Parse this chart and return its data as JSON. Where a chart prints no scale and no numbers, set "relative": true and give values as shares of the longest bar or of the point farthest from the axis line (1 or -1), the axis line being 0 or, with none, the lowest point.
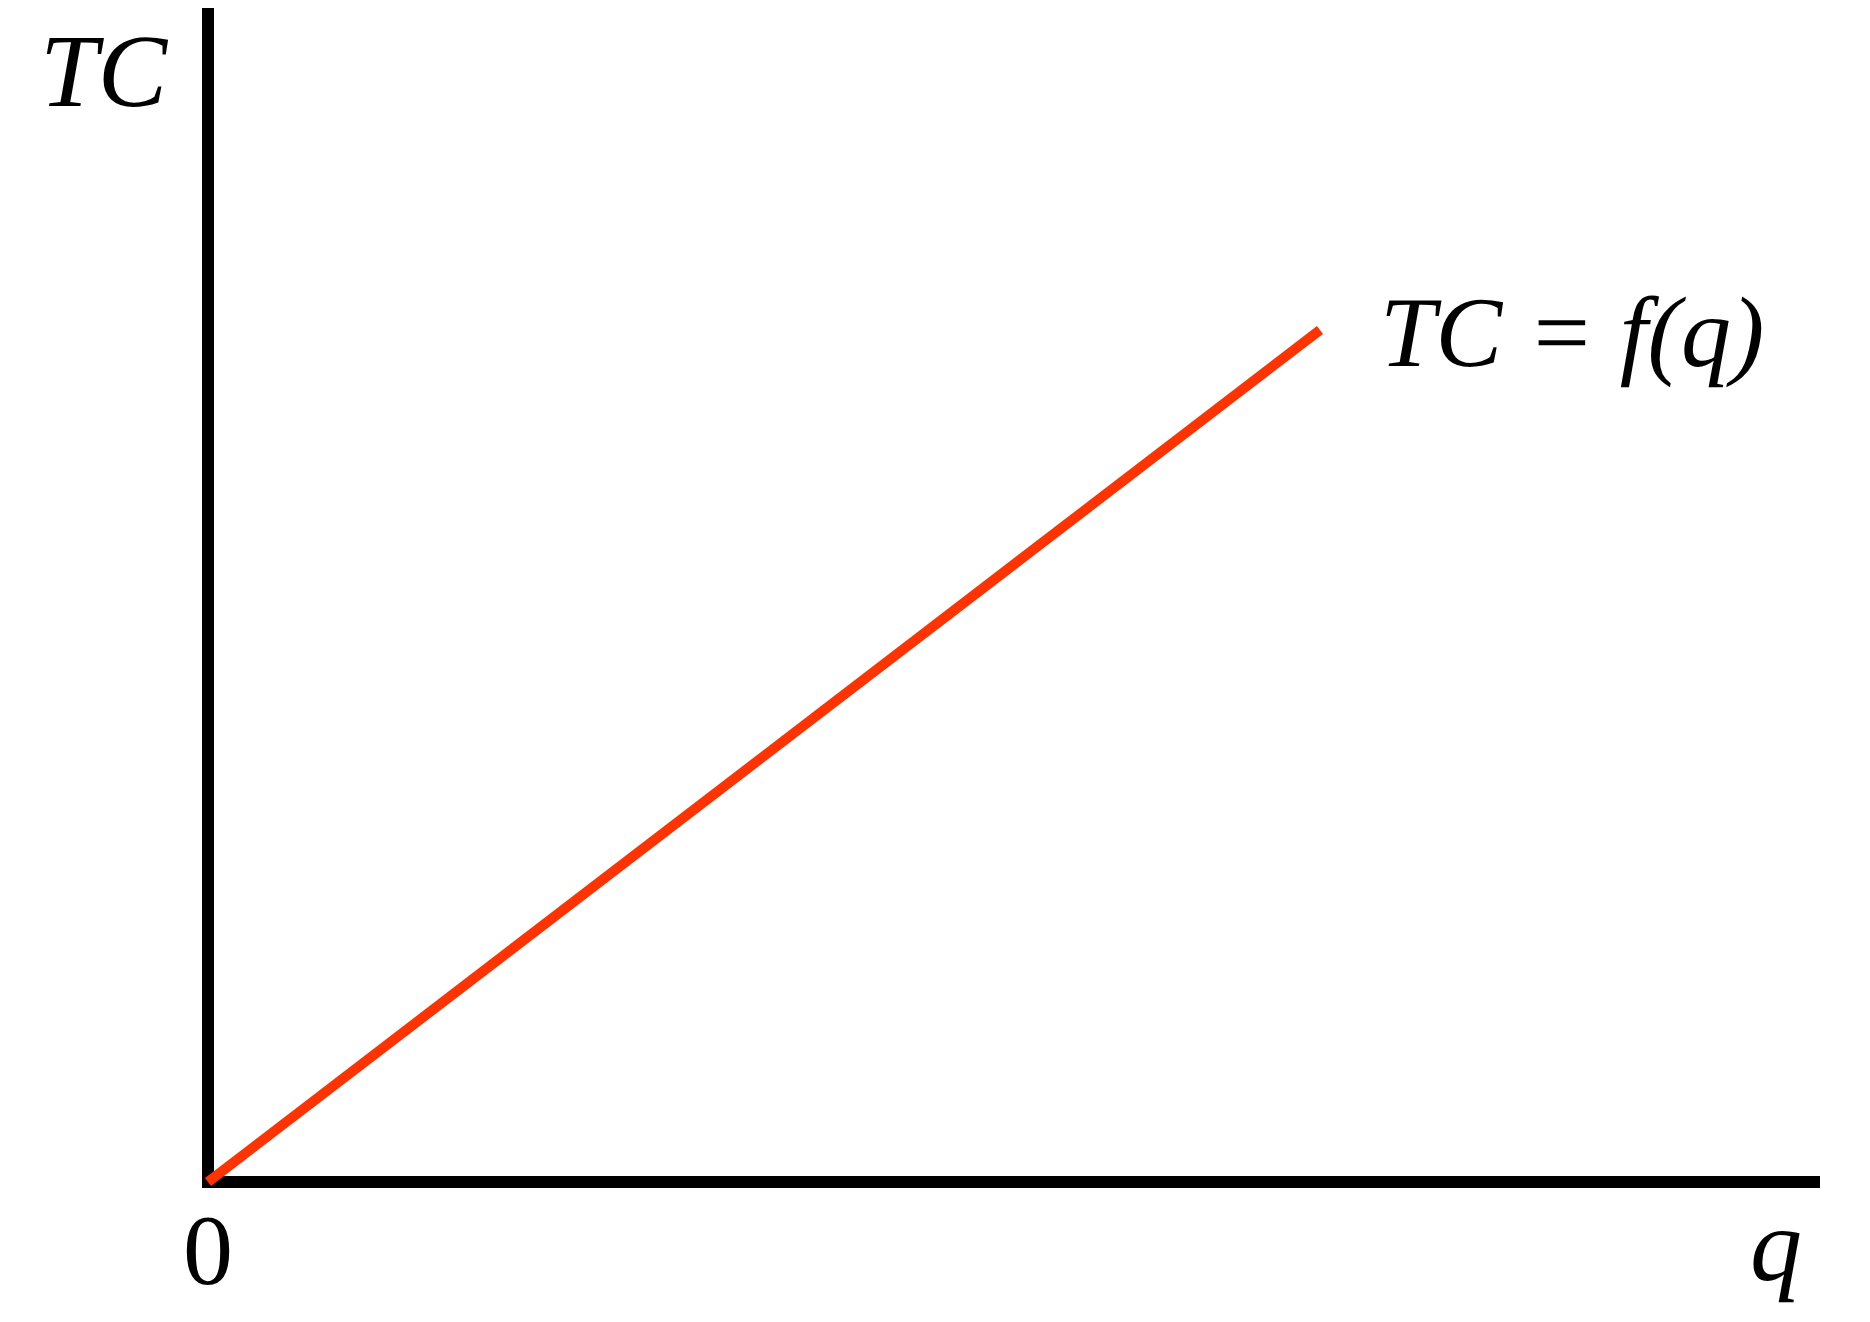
{
  "chart_data": {
    "type": "line",
    "xlabel": "q",
    "ylabel": "TC",
    "categories": [
      null,
      null
    ],
    "relative": true,
    "annotations": [
      "0"
    ],
    "series": [
      {
        "name": "TC = f(q)",
        "color": "#ff3300",
        "values": [
          0,
          1
        ]
      }
    ]
  }
}
